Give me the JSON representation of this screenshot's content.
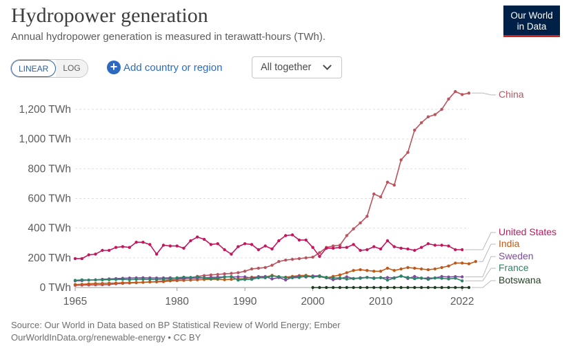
{
  "header": {
    "title": "Hydropower generation",
    "subtitle": "Annual hydropower generation is measured in terawatt-hours (TWh)."
  },
  "logo": {
    "line1": "Our World",
    "line2": "in Data",
    "bg_color": "#002147",
    "accent_color": "#ce261e"
  },
  "controls": {
    "linear_label": "LINEAR",
    "log_label": "LOG",
    "active_scale": "linear",
    "add_label": "Add country or region",
    "add_icon": "plus-circle-icon",
    "dropdown_label": "All together",
    "dropdown_icon": "chevron-down-icon"
  },
  "footer": {
    "source_line1": "Source: Our World in Data based on BP Statistical Review of World Energy; Ember",
    "source_line2": "OurWorldInData.org/renewable-energy • CC BY"
  },
  "chart_data": {
    "type": "line",
    "title": "Hydropower generation",
    "ylabel": "",
    "xlabel": "",
    "xlim": [
      1965,
      2023
    ],
    "ylim": [
      0,
      1300
    ],
    "x_ticks": [
      1965,
      1980,
      1990,
      2000,
      2010,
      2022
    ],
    "y_ticks": [
      0,
      200,
      400,
      600,
      800,
      1000,
      1200
    ],
    "y_tick_labels": [
      "0 TWh",
      "200 TWh",
      "400 TWh",
      "600 TWh",
      "800 TWh",
      "1,000 TWh",
      "1,200 TWh"
    ],
    "grid": "horizontal-dashed",
    "series": [
      {
        "name": "China",
        "color": "#b9545f",
        "start": 1965,
        "values": [
          15,
          16,
          17,
          18,
          19,
          20,
          25,
          28,
          30,
          33,
          35,
          38,
          40,
          45,
          50,
          55,
          58,
          65,
          75,
          80,
          85,
          88,
          92,
          95,
          100,
          110,
          125,
          130,
          135,
          150,
          175,
          185,
          190,
          195,
          200,
          205,
          235,
          270,
          280,
          285,
          350,
          395,
          435,
          480,
          630,
          610,
          710,
          690,
          860,
          910,
          1060,
          1110,
          1150,
          1165,
          1200,
          1270,
          1320,
          1300,
          1310
        ]
      },
      {
        "name": "United States",
        "color": "#c4155d",
        "start": 1965,
        "values": [
          195,
          195,
          220,
          225,
          250,
          250,
          270,
          275,
          270,
          305,
          305,
          290,
          225,
          285,
          280,
          280,
          265,
          315,
          340,
          325,
          290,
          295,
          255,
          225,
          275,
          295,
          290,
          255,
          280,
          260,
          315,
          350,
          355,
          320,
          320,
          270,
          210,
          265,
          265,
          270,
          270,
          290,
          250,
          255,
          275,
          260,
          315,
          275,
          265,
          260,
          250,
          270,
          295,
          285,
          285,
          280,
          255,
          255
        ]
      },
      {
        "name": "India",
        "color": "#c05917",
        "start": 1965,
        "values": [
          20,
          22,
          25,
          27,
          28,
          29,
          30,
          32,
          33,
          34,
          35,
          37,
          38,
          40,
          45,
          47,
          48,
          50,
          52,
          54,
          56,
          55,
          53,
          55,
          58,
          60,
          70,
          72,
          70,
          82,
          72,
          70,
          75,
          80,
          82,
          75,
          73,
          65,
          75,
          85,
          100,
          115,
          120,
          115,
          110,
          110,
          130,
          115,
          125,
          135,
          130,
          125,
          120,
          125,
          135,
          145,
          165,
          165,
          160,
          175
        ]
      },
      {
        "name": "Sweden",
        "color": "#7c4c9c",
        "start": 1965,
        "values": [
          45,
          47,
          50,
          52,
          55,
          58,
          60,
          62,
          64,
          65,
          66,
          65,
          64,
          65,
          66,
          62,
          62,
          62,
          63,
          66,
          68,
          70,
          72,
          72,
          72,
          72,
          63,
          73,
          74,
          58,
          67,
          51,
          69,
          74,
          71,
          78,
          79,
          66,
          53,
          60,
          72,
          61,
          66,
          68,
          65,
          66,
          67,
          66,
          78,
          61,
          74,
          62,
          64,
          65,
          74,
          71,
          73,
          72
        ]
      },
      {
        "name": "France",
        "color": "#2b8465",
        "start": 1965,
        "values": [
          48,
          52,
          50,
          51,
          52,
          53,
          54,
          55,
          53,
          55,
          56,
          55,
          54,
          57,
          58,
          66,
          70,
          68,
          71,
          64,
          60,
          62,
          71,
          73,
          50,
          54,
          55,
          66,
          66,
          78,
          73,
          67,
          66,
          67,
          78,
          70,
          77,
          69,
          65,
          65,
          57,
          60,
          62,
          68,
          61,
          67,
          50,
          63,
          76,
          68,
          60,
          64,
          55,
          64,
          62,
          58,
          63,
          45
        ]
      },
      {
        "name": "Botswana",
        "color": "#1e3d1f",
        "start": 2000,
        "values": [
          0,
          0,
          0,
          0,
          0,
          0,
          0,
          0,
          0,
          0,
          0,
          0,
          0,
          0,
          0,
          0,
          0,
          0,
          0,
          0,
          0,
          0,
          0,
          0
        ]
      }
    ],
    "legend_placement": "right-end-labels"
  }
}
